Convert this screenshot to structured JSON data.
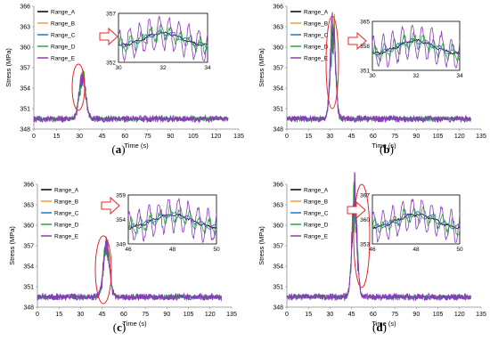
{
  "colors": {
    "Range_A": "#000000",
    "Range_B": "#F39C33",
    "Range_C": "#1F77C4",
    "Range_D": "#22AA3A",
    "Range_E": "#8A3AB9",
    "highlight": "#E8262A"
  },
  "chart_data": [
    {
      "type": "line",
      "caption": "(a)",
      "xlabel": "Time (s)",
      "ylabel": "Stress (MPa)",
      "xlim": [
        0,
        135
      ],
      "ylim": [
        348,
        366
      ],
      "xticks": [
        "0",
        "15",
        "30",
        "45",
        "60",
        "75",
        "90",
        "105",
        "120",
        "135"
      ],
      "yticks": [
        "348",
        "351",
        "354",
        "357",
        "360",
        "363",
        "366"
      ],
      "grid": false,
      "legend_position": "top-left",
      "series_names": [
        "Range_A",
        "Range_B",
        "Range_C",
        "Range_D",
        "Range_E"
      ],
      "baseline": 349.5,
      "peak": {
        "time": 32,
        "value": 356.5,
        "width": 3
      },
      "duration": 128,
      "inset": {
        "xlim": [
          30,
          34
        ],
        "ylim": [
          352,
          357
        ],
        "xticks": [
          "30",
          "32",
          "34"
        ],
        "yticks": [
          "352",
          "357"
        ],
        "peak_time": 32,
        "peak_value": 355.5
      }
    },
    {
      "type": "line",
      "caption": "(b)",
      "xlabel": "Time (s)",
      "ylabel": "Stress (MPa)",
      "xlim": [
        0,
        135
      ],
      "ylim": [
        348,
        366
      ],
      "xticks": [
        "0",
        "15",
        "30",
        "45",
        "60",
        "75",
        "90",
        "105",
        "120",
        "135"
      ],
      "yticks": [
        "348",
        "351",
        "354",
        "357",
        "360",
        "363",
        "366"
      ],
      "grid": false,
      "legend_position": "top-left",
      "series_names": [
        "Range_A",
        "Range_B",
        "Range_C",
        "Range_D",
        "Range_E"
      ],
      "baseline": 349.5,
      "peak": {
        "time": 32,
        "value": 365,
        "width": 2.5
      },
      "duration": 128,
      "inset": {
        "xlim": [
          30,
          34
        ],
        "ylim": [
          351,
          365
        ],
        "xticks": [
          "30",
          "32",
          "34"
        ],
        "yticks": [
          "351",
          "358",
          "365"
        ],
        "peak_time": 32,
        "peak_value": 363
      }
    },
    {
      "type": "line",
      "caption": "(c)",
      "xlabel": "Time (s)",
      "ylabel": "Stress (MPa)",
      "xlim": [
        0,
        135
      ],
      "ylim": [
        348,
        366
      ],
      "xticks": [
        "0",
        "15",
        "30",
        "45",
        "60",
        "75",
        "90",
        "105",
        "120",
        "135"
      ],
      "yticks": [
        "348",
        "351",
        "354",
        "357",
        "360",
        "363",
        "366"
      ],
      "grid": false,
      "legend_position": "top-left",
      "series_names": [
        "Range_A",
        "Range_B",
        "Range_C",
        "Range_D",
        "Range_E"
      ],
      "baseline": 349.5,
      "peak": {
        "time": 48,
        "value": 358,
        "width": 3
      },
      "duration": 128,
      "inset": {
        "xlim": [
          46,
          50
        ],
        "ylim": [
          349,
          359
        ],
        "xticks": [
          "46",
          "48",
          "50"
        ],
        "yticks": [
          "349",
          "354",
          "359"
        ],
        "peak_time": 48,
        "peak_value": 354
      }
    },
    {
      "type": "line",
      "caption": "(d)",
      "xlabel": "Time (s)",
      "ylabel": "Stress (MPa)",
      "xlim": [
        0,
        135
      ],
      "ylim": [
        348,
        366
      ],
      "xticks": [
        "0",
        "15",
        "30",
        "45",
        "60",
        "75",
        "90",
        "105",
        "120",
        "135"
      ],
      "yticks": [
        "348",
        "351",
        "354",
        "357",
        "360",
        "363",
        "366"
      ],
      "grid": false,
      "legend_position": "top-left",
      "series_names": [
        "Range_A",
        "Range_B",
        "Range_C",
        "Range_D",
        "Range_E"
      ],
      "baseline": 349.5,
      "peak": {
        "time": 47,
        "value": 366,
        "width": 2.5
      },
      "duration": 128,
      "inset": {
        "xlim": [
          46,
          50
        ],
        "ylim": [
          353,
          367
        ],
        "xticks": [
          "46",
          "48",
          "50"
        ],
        "yticks": [
          "353",
          "360",
          "367"
        ],
        "peak_time": 48,
        "peak_value": 362
      }
    }
  ]
}
